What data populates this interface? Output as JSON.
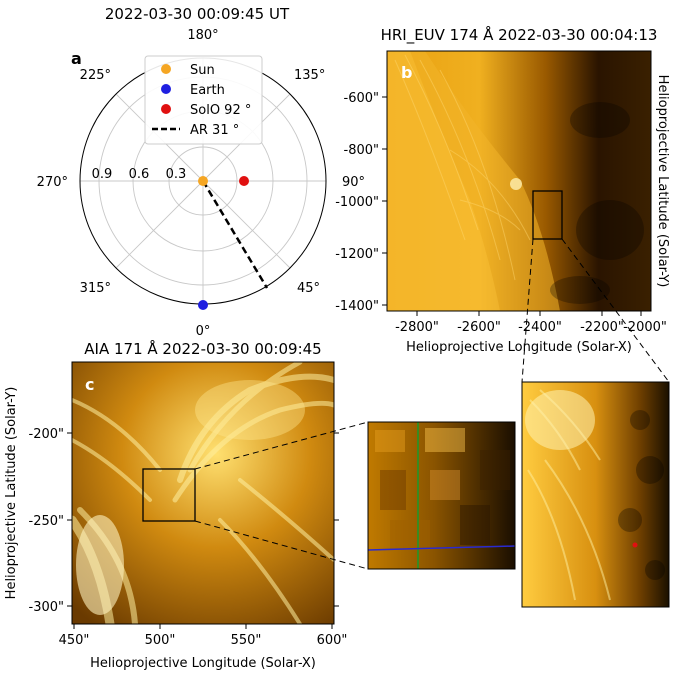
{
  "figure": {
    "panel_a": {
      "letter": "a",
      "title": "2022-03-30 00:09:45 UT",
      "angle_labels": [
        "180°",
        "135°",
        "90°",
        "45°",
        "0°",
        "315°",
        "270°",
        "225°"
      ],
      "radial_labels": [
        "0.9",
        "0.6",
        "0.3"
      ],
      "legend": [
        {
          "label": "Sun",
          "color": "#f5a623",
          "kind": "dot"
        },
        {
          "label": "Earth",
          "color": "#1f1fe0",
          "kind": "dot"
        },
        {
          "label": "SolO 92 °",
          "color": "#e01010",
          "kind": "dot"
        },
        {
          "label": "AR 31 °",
          "color": "#000000",
          "kind": "dash"
        }
      ]
    },
    "panel_b": {
      "letter": "b",
      "title": "HRI_EUV 174 Å 2022-03-30 00:04:13",
      "xlabel": "Helioprojective Longitude (Solar-X)",
      "ylabel": "Helioprojective Latitude (Solar-Y)",
      "xticks": [
        "-2800\"",
        "-2600\"",
        "-2400\"",
        "-2200\"",
        "-2000\""
      ],
      "yticks": [
        "-600\"",
        "-800\"",
        "-1000\"",
        "-1200\"",
        "-1400\""
      ]
    },
    "panel_c": {
      "letter": "c",
      "title": "AIA 171 Å 2022-03-30 00:09:45",
      "xlabel": "Helioprojective Longitude (Solar-X)",
      "ylabel": "Helioprojective Latitude (Solar-Y)",
      "xticks": [
        "450\"",
        "500\"",
        "550\"",
        "600\""
      ],
      "yticks": [
        "-200\"",
        "-250\"",
        "-300\""
      ]
    },
    "colors": {
      "sun": "#f5a623",
      "earth": "#1f1fe0",
      "solo": "#e01010",
      "image_dark": "#1a0e00",
      "image_bright": "#ffd24a",
      "line_green": "#1a9a2a",
      "line_blue": "#2a2ad0"
    }
  }
}
